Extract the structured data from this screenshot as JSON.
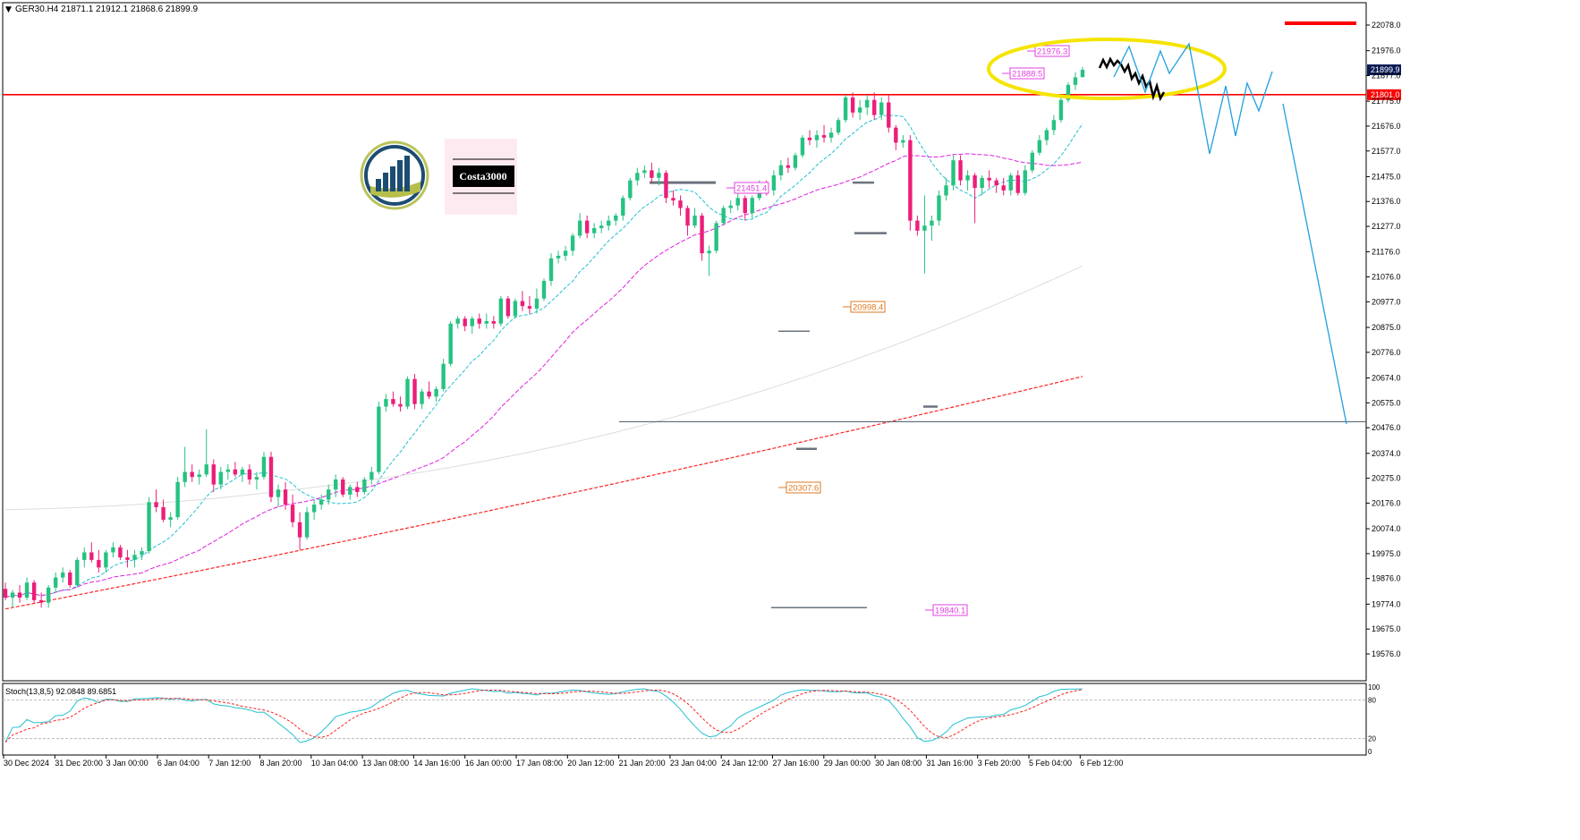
{
  "window": {
    "symbol_line": "GER30.H4  21871.1 21912.1 21868.6 21899.9",
    "symbol": "GER30.H4",
    "ohlc": "21871.1 21912.1 21868.6 21899.9"
  },
  "watermark": {
    "name": "Costa3000"
  },
  "price_scale": {
    "ticks": [
      "22078.0",
      "21976.0",
      "21877.0",
      "21775.0",
      "21676.0",
      "21577.0",
      "21475.0",
      "21376.0",
      "21277.0",
      "21176.0",
      "21076.0",
      "20977.0",
      "20875.0",
      "20776.0",
      "20674.0",
      "20575.0",
      "20476.0",
      "20374.0",
      "20275.0",
      "20176.0",
      "20074.0",
      "19975.0",
      "19876.0",
      "19774.0",
      "19675.0",
      "19576.0"
    ],
    "current_price_label": "21899.9",
    "level_label": "21801.0"
  },
  "time_axis": {
    "labels": [
      "30 Dec 2024",
      "31 Dec 20:00",
      "3 Jan 00:00",
      "6 Jan 04:00",
      "7 Jan 12:00",
      "8 Jan 20:00",
      "10 Jan 04:00",
      "13 Jan 08:00",
      "14 Jan 16:00",
      "16 Jan 00:00",
      "17 Jan 08:00",
      "20 Jan 12:00",
      "21 Jan 20:00",
      "23 Jan 04:00",
      "24 Jan 12:00",
      "27 Jan 16:00",
      "29 Jan 00:00",
      "30 Jan 08:00",
      "31 Jan 16:00",
      "3 Feb 20:00",
      "5 Feb 04:00",
      "6 Feb 12:00"
    ]
  },
  "price_labels": [
    {
      "text": "21976.3",
      "color": "#e040e0"
    },
    {
      "text": "21888.5",
      "color": "#e040e0"
    },
    {
      "text": "21451.4",
      "color": "#e040e0"
    },
    {
      "text": "20998.4",
      "color": "#e07a20"
    },
    {
      "text": "20307.6",
      "color": "#e07a20"
    },
    {
      "text": "19840.1",
      "color": "#e040e0"
    }
  ],
  "stochastic": {
    "label": "Stoch(13,8,5) 92.0848 89.6851",
    "levels": [
      "100",
      "80",
      "20",
      "0"
    ]
  },
  "colors": {
    "bull_candle": "#26c281",
    "bear_candle": "#ec1e79",
    "resistance_line": "#ff0000",
    "ma_fast": "#20c0d0",
    "ma_mid": "#e020e0",
    "ma_slow": "#dddddd",
    "ma_long": "#ff2020",
    "projection": "#1ea0e0",
    "highlight_ellipse": "#f5e400",
    "support_line": "#445566"
  },
  "chart_data": {
    "type": "candlestick",
    "symbol": "GER30.H4",
    "current_price": 21899.9,
    "resistance_level": 21801.0,
    "support_level": 20500,
    "ylim": [
      19576,
      22130
    ],
    "x_start": "30 Dec 2024",
    "x_end": "6 Feb 12:00",
    "candles": [
      [
        19835,
        19860,
        19790,
        19800
      ],
      [
        19800,
        19830,
        19760,
        19820
      ],
      [
        19820,
        19850,
        19780,
        19800
      ],
      [
        19800,
        19880,
        19790,
        19860
      ],
      [
        19860,
        19870,
        19780,
        19790
      ],
      [
        19790,
        19820,
        19760,
        19780
      ],
      [
        19780,
        19850,
        19760,
        19840
      ],
      [
        19840,
        19900,
        19820,
        19880
      ],
      [
        19880,
        19920,
        19860,
        19900
      ],
      [
        19900,
        19910,
        19840,
        19850
      ],
      [
        19850,
        19960,
        19840,
        19950
      ],
      [
        19950,
        20000,
        19920,
        19980
      ],
      [
        19980,
        20020,
        19940,
        19950
      ],
      [
        19950,
        19990,
        19900,
        19920
      ],
      [
        19920,
        19990,
        19900,
        19980
      ],
      [
        19980,
        20020,
        19960,
        20000
      ],
      [
        20000,
        20010,
        19950,
        19960
      ],
      [
        19960,
        19990,
        19920,
        19950
      ],
      [
        19950,
        19990,
        19920,
        19970
      ],
      [
        19970,
        20000,
        19950,
        19985
      ],
      [
        19985,
        20200,
        19975,
        20180
      ],
      [
        20180,
        20230,
        20140,
        20160
      ],
      [
        20160,
        20190,
        20100,
        20110
      ],
      [
        20110,
        20140,
        20080,
        20120
      ],
      [
        20120,
        20280,
        20110,
        20260
      ],
      [
        20260,
        20400,
        20240,
        20300
      ],
      [
        20300,
        20330,
        20260,
        20280
      ],
      [
        20280,
        20310,
        20250,
        20290
      ],
      [
        20290,
        20470,
        20280,
        20330
      ],
      [
        20330,
        20350,
        20220,
        20250
      ],
      [
        20250,
        20320,
        20230,
        20300
      ],
      [
        20300,
        20330,
        20270,
        20310
      ],
      [
        20310,
        20340,
        20280,
        20290
      ],
      [
        20290,
        20320,
        20260,
        20310
      ],
      [
        20310,
        20330,
        20250,
        20270
      ],
      [
        20270,
        20300,
        20230,
        20280
      ],
      [
        20280,
        20380,
        20270,
        20360
      ],
      [
        20360,
        20380,
        20180,
        20200
      ],
      [
        20200,
        20250,
        20160,
        20230
      ],
      [
        20230,
        20260,
        20150,
        20170
      ],
      [
        20170,
        20210,
        20080,
        20100
      ],
      [
        20100,
        20140,
        19990,
        20040
      ],
      [
        20040,
        20160,
        20030,
        20140
      ],
      [
        20140,
        20190,
        20110,
        20170
      ],
      [
        20170,
        20210,
        20150,
        20190
      ],
      [
        20190,
        20250,
        20170,
        20230
      ],
      [
        20230,
        20290,
        20200,
        20270
      ],
      [
        20270,
        20280,
        20200,
        20210
      ],
      [
        20210,
        20250,
        20190,
        20240
      ],
      [
        20240,
        20260,
        20200,
        20220
      ],
      [
        20220,
        20280,
        20210,
        20270
      ],
      [
        20270,
        20320,
        20250,
        20300
      ],
      [
        20300,
        20580,
        20290,
        20560
      ],
      [
        20560,
        20610,
        20540,
        20590
      ],
      [
        20590,
        20620,
        20560,
        20570
      ],
      [
        20570,
        20600,
        20540,
        20560
      ],
      [
        20560,
        20680,
        20550,
        20670
      ],
      [
        20670,
        20690,
        20550,
        20570
      ],
      [
        20570,
        20630,
        20550,
        20620
      ],
      [
        20620,
        20660,
        20590,
        20600
      ],
      [
        20600,
        20640,
        20580,
        20630
      ],
      [
        20630,
        20750,
        20620,
        20730
      ],
      [
        20730,
        20900,
        20720,
        20890
      ],
      [
        20890,
        20920,
        20870,
        20910
      ],
      [
        20910,
        20920,
        20860,
        20880
      ],
      [
        20880,
        20920,
        20850,
        20910
      ],
      [
        20910,
        20930,
        20870,
        20890
      ],
      [
        20890,
        20930,
        20870,
        20900
      ],
      [
        20900,
        20920,
        20870,
        20890
      ],
      [
        20890,
        21000,
        20880,
        20990
      ],
      [
        20990,
        21000,
        20910,
        20920
      ],
      [
        20920,
        20990,
        20910,
        20980
      ],
      [
        20980,
        21020,
        20940,
        20960
      ],
      [
        20960,
        21000,
        20930,
        20950
      ],
      [
        20950,
        21030,
        20930,
        20990
      ],
      [
        20990,
        21070,
        20980,
        21060
      ],
      [
        21060,
        21170,
        21040,
        21150
      ],
      [
        21150,
        21180,
        21130,
        21160
      ],
      [
        21160,
        21200,
        21140,
        21180
      ],
      [
        21180,
        21250,
        21160,
        21240
      ],
      [
        21240,
        21330,
        21230,
        21300
      ],
      [
        21300,
        21320,
        21230,
        21250
      ],
      [
        21250,
        21290,
        21230,
        21270
      ],
      [
        21270,
        21300,
        21250,
        21280
      ],
      [
        21280,
        21320,
        21260,
        21300
      ],
      [
        21300,
        21330,
        21280,
        21320
      ],
      [
        21320,
        21400,
        21300,
        21390
      ],
      [
        21390,
        21470,
        21380,
        21460
      ],
      [
        21460,
        21510,
        21440,
        21490
      ],
      [
        21490,
        21520,
        21470,
        21500
      ],
      [
        21500,
        21530,
        21450,
        21470
      ],
      [
        21470,
        21510,
        21440,
        21490
      ],
      [
        21490,
        21500,
        21370,
        21390
      ],
      [
        21390,
        21420,
        21360,
        21380
      ],
      [
        21380,
        21400,
        21320,
        21350
      ],
      [
        21350,
        21360,
        21240,
        21280
      ],
      [
        21280,
        21350,
        21270,
        21320
      ],
      [
        21320,
        21330,
        21140,
        21170
      ],
      [
        21170,
        21200,
        21080,
        21180
      ],
      [
        21180,
        21300,
        21170,
        21290
      ],
      [
        21290,
        21360,
        21280,
        21350
      ],
      [
        21350,
        21380,
        21330,
        21360
      ],
      [
        21360,
        21420,
        21340,
        21390
      ],
      [
        21390,
        21400,
        21300,
        21330
      ],
      [
        21330,
        21400,
        21310,
        21390
      ],
      [
        21390,
        21460,
        21380,
        21440
      ],
      [
        21440,
        21460,
        21400,
        21420
      ],
      [
        21420,
        21500,
        21400,
        21480
      ],
      [
        21480,
        21540,
        21460,
        21520
      ],
      [
        21520,
        21550,
        21490,
        21510
      ],
      [
        21510,
        21570,
        21500,
        21560
      ],
      [
        21560,
        21640,
        21550,
        21630
      ],
      [
        21630,
        21660,
        21600,
        21620
      ],
      [
        21620,
        21660,
        21590,
        21640
      ],
      [
        21640,
        21680,
        21610,
        21630
      ],
      [
        21630,
        21670,
        21610,
        21650
      ],
      [
        21650,
        21710,
        21640,
        21700
      ],
      [
        21700,
        21800,
        21690,
        21790
      ],
      [
        21790,
        21810,
        21710,
        21730
      ],
      [
        21730,
        21780,
        21700,
        21750
      ],
      [
        21750,
        21800,
        21720,
        21780
      ],
      [
        21780,
        21810,
        21700,
        21720
      ],
      [
        21720,
        21790,
        21700,
        21770
      ],
      [
        21770,
        21800,
        21650,
        21670
      ],
      [
        21670,
        21680,
        21580,
        21610
      ],
      [
        21610,
        21640,
        21590,
        21620
      ],
      [
        21620,
        21640,
        21260,
        21300
      ],
      [
        21300,
        21320,
        21240,
        21260
      ],
      [
        21260,
        21400,
        21090,
        21280
      ],
      [
        21280,
        21320,
        21220,
        21300
      ],
      [
        21300,
        21420,
        21280,
        21400
      ],
      [
        21400,
        21470,
        21380,
        21440
      ],
      [
        21440,
        21560,
        21420,
        21540
      ],
      [
        21540,
        21560,
        21440,
        21460
      ],
      [
        21460,
        21500,
        21420,
        21480
      ],
      [
        21480,
        21490,
        21290,
        21430
      ],
      [
        21430,
        21480,
        21400,
        21470
      ],
      [
        21470,
        21500,
        21430,
        21460
      ],
      [
        21460,
        21470,
        21410,
        21440
      ],
      [
        21440,
        21470,
        21400,
        21420
      ],
      [
        21420,
        21490,
        21400,
        21480
      ],
      [
        21480,
        21500,
        21400,
        21410
      ],
      [
        21410,
        21520,
        21400,
        21500
      ],
      [
        21500,
        21580,
        21490,
        21570
      ],
      [
        21570,
        21640,
        21560,
        21620
      ],
      [
        21620,
        21670,
        21600,
        21660
      ],
      [
        21660,
        21720,
        21640,
        21700
      ],
      [
        21700,
        21790,
        21690,
        21780
      ],
      [
        21780,
        21850,
        21770,
        21840
      ],
      [
        21840,
        21890,
        21820,
        21870
      ],
      [
        21871.1,
        21912.1,
        21868.6,
        21899.9
      ]
    ]
  }
}
